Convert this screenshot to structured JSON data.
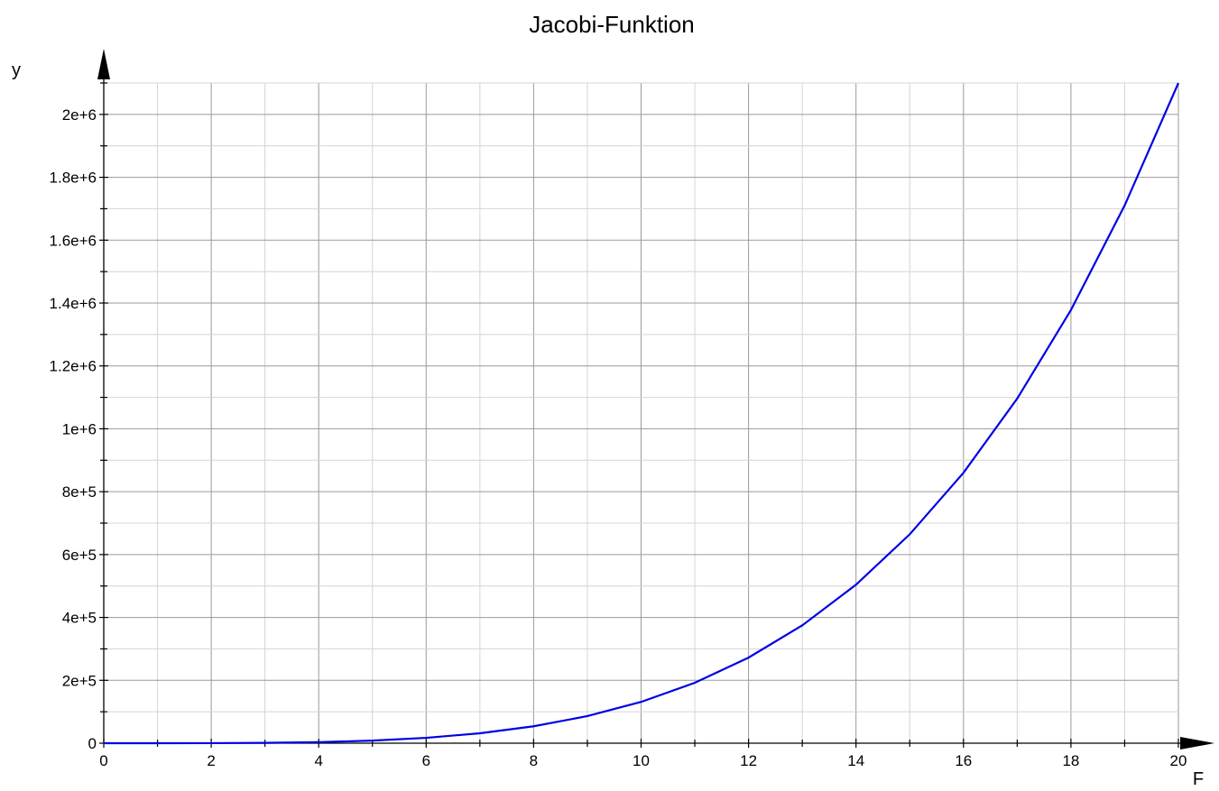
{
  "chart_data": {
    "type": "line",
    "title": "Jacobi-Funktion",
    "xlabel": "F",
    "ylabel": "y",
    "xlim": [
      0,
      20
    ],
    "ylim": [
      0,
      2100000
    ],
    "grid": true,
    "x_ticks": [
      "0",
      "2",
      "4",
      "6",
      "8",
      "10",
      "12",
      "14",
      "16",
      "18",
      "20"
    ],
    "y_ticks": [
      "0",
      "2e+5",
      "4e+5",
      "6e+5",
      "8e+5",
      "1e+6",
      "1.2e+6",
      "1.4e+6",
      "1.6e+6",
      "1.8e+6",
      "2e+6"
    ],
    "series": [
      {
        "color": "#0000e6",
        "x": [
          0,
          1,
          2,
          3,
          4,
          5,
          6,
          7,
          8,
          9,
          10,
          11,
          12,
          13,
          14,
          15,
          16,
          17,
          18,
          19,
          20
        ],
        "y": [
          0,
          13,
          210,
          1063,
          3360,
          8203,
          17010,
          31513,
          53760,
          86113,
          131250,
          192163,
          272160,
          374863,
          504210,
          664453,
          860160,
          1096213,
          1377810,
          1710463,
          2100000
        ]
      }
    ]
  }
}
